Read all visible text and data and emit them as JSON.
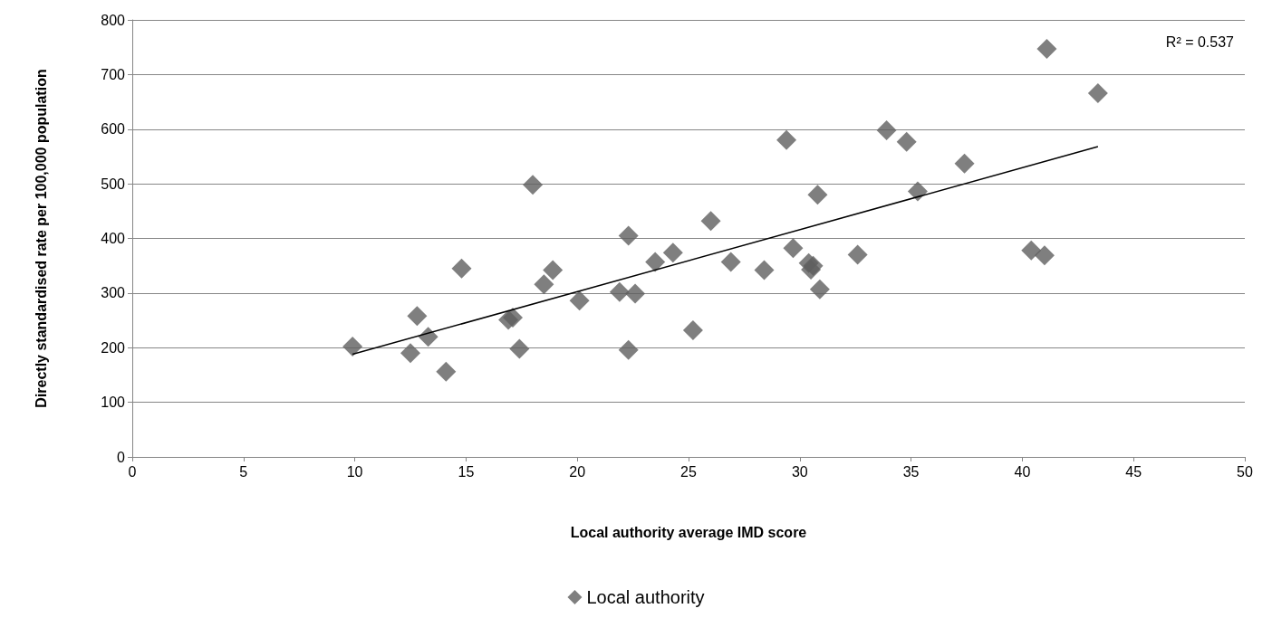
{
  "chart_data": {
    "type": "scatter",
    "xlabel": "Local authority average IMD score",
    "ylabel": "Directly standardised rate per 100,000 population",
    "annotations": [
      "R² = 0.537"
    ],
    "xlim": [
      0,
      50
    ],
    "xticks": [
      0,
      5,
      10,
      15,
      20,
      25,
      30,
      35,
      40,
      45,
      50
    ],
    "ylim": [
      0,
      800
    ],
    "yticks": [
      0,
      100,
      200,
      300,
      400,
      500,
      600,
      700,
      800
    ],
    "grid": "y",
    "legend": "bottom",
    "series": [
      {
        "name": "Local authority",
        "marker": "diamond",
        "color": "#5f5f5f",
        "x": [
          9.9,
          12.5,
          12.8,
          13.3,
          14.1,
          14.8,
          16.9,
          17.1,
          17.4,
          18.0,
          18.5,
          18.9,
          20.1,
          21.9,
          22.3,
          22.3,
          22.6,
          23.5,
          24.3,
          25.2,
          26.0,
          26.9,
          28.4,
          29.4,
          29.7,
          30.4,
          30.5,
          30.6,
          30.8,
          30.9,
          32.6,
          33.9,
          34.8,
          35.3,
          37.4,
          40.4,
          41.0,
          41.1,
          43.4
        ],
        "values": [
          202,
          190,
          258,
          220,
          156,
          345,
          251,
          255,
          198,
          498,
          316,
          342,
          286,
          302,
          405,
          196,
          299,
          357,
          374,
          232,
          432,
          357,
          342,
          580,
          382,
          355,
          343,
          350,
          480,
          307,
          370,
          598,
          577,
          486,
          537,
          378,
          369,
          747,
          666
        ]
      },
      {
        "type": "line",
        "marker": "none",
        "color": "#000000",
        "line_style": "solid",
        "x": [
          9.9,
          43.4
        ],
        "values": [
          188,
          568
        ]
      }
    ]
  }
}
